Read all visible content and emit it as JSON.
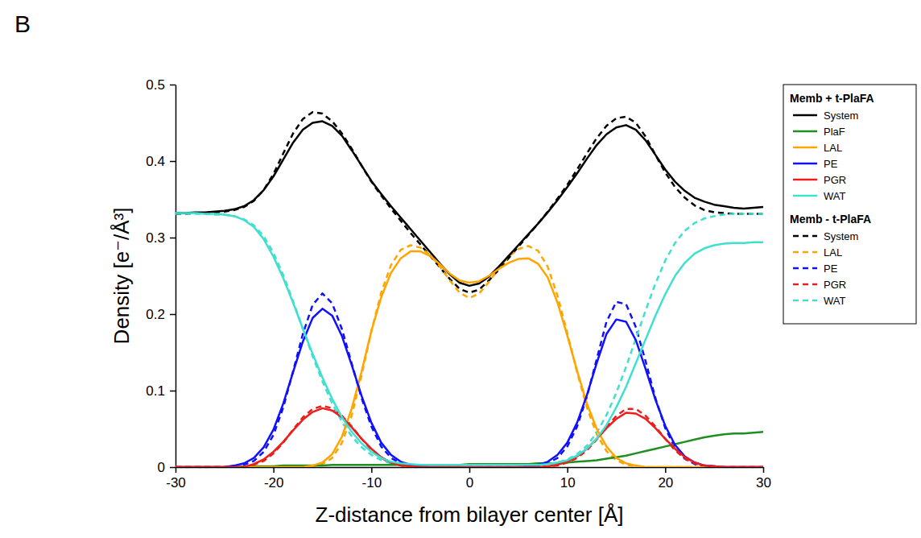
{
  "chart_data": {
    "type": "line",
    "panel_label": "B",
    "x_label": "Z-distance from bilayer center [Å]",
    "y_label": "Density [e⁻/Å³]",
    "xlim": [
      -30,
      30
    ],
    "xticks": [
      -30,
      -20,
      -10,
      0,
      10,
      20,
      30
    ],
    "ylim": [
      0,
      0.5
    ],
    "yticks": [
      0,
      0.1,
      0.2,
      0.3,
      0.4,
      0.5
    ],
    "legend": "right",
    "x": [
      -30,
      -29,
      -28,
      -27,
      -26,
      -25,
      -24,
      -23,
      -22,
      -21,
      -20,
      -19,
      -18,
      -17,
      -16,
      -15,
      -14,
      -13,
      -12,
      -11,
      -10,
      -9,
      -8,
      -7,
      -6,
      -5,
      -4,
      -3,
      -2,
      -1,
      0,
      1,
      2,
      3,
      4,
      5,
      6,
      7,
      8,
      9,
      10,
      11,
      12,
      13,
      14,
      15,
      16,
      17,
      18,
      19,
      20,
      21,
      22,
      23,
      24,
      25,
      26,
      27,
      28,
      29,
      30
    ],
    "groups": [
      {
        "name": "Memb + t-PlaFA",
        "line_style": "solid",
        "series": [
          {
            "name": "System",
            "color": "#000000",
            "values": [
              0.332,
              0.332,
              0.333,
              0.333,
              0.334,
              0.335,
              0.337,
              0.341,
              0.349,
              0.362,
              0.38,
              0.402,
              0.424,
              0.441,
              0.45,
              0.452,
              0.446,
              0.433,
              0.414,
              0.394,
              0.374,
              0.357,
              0.341,
              0.326,
              0.311,
              0.296,
              0.281,
              0.266,
              0.252,
              0.241,
              0.237,
              0.24,
              0.249,
              0.262,
              0.276,
              0.29,
              0.304,
              0.318,
              0.333,
              0.349,
              0.366,
              0.384,
              0.403,
              0.421,
              0.435,
              0.444,
              0.447,
              0.441,
              0.427,
              0.408,
              0.389,
              0.373,
              0.361,
              0.352,
              0.347,
              0.343,
              0.341,
              0.339,
              0.338,
              0.339,
              0.34
            ]
          },
          {
            "name": "PlaF",
            "color": "#1f8f1f",
            "values": [
              0,
              0,
              0,
              0,
              0,
              0,
              0.001,
              0.001,
              0.001,
              0.001,
              0.001,
              0.002,
              0.002,
              0.002,
              0.002,
              0.002,
              0.003,
              0.003,
              0.003,
              0.003,
              0.003,
              0.003,
              0.003,
              0.003,
              0.003,
              0.003,
              0.003,
              0.003,
              0.003,
              0.003,
              0.004,
              0.004,
              0.004,
              0.004,
              0.004,
              0.004,
              0.004,
              0.005,
              0.005,
              0.005,
              0.006,
              0.007,
              0.008,
              0.009,
              0.011,
              0.013,
              0.015,
              0.018,
              0.021,
              0.024,
              0.027,
              0.03,
              0.033,
              0.036,
              0.039,
              0.041,
              0.043,
              0.044,
              0.044,
              0.045,
              0.046
            ]
          },
          {
            "name": "LAL",
            "color": "#ffa500",
            "values": [
              0,
              0,
              0,
              0,
              0,
              0,
              0,
              0,
              0,
              0,
              0,
              0,
              0,
              0,
              0.002,
              0.006,
              0.017,
              0.04,
              0.077,
              0.125,
              0.178,
              0.222,
              0.254,
              0.273,
              0.282,
              0.282,
              0.276,
              0.265,
              0.253,
              0.244,
              0.241,
              0.243,
              0.25,
              0.259,
              0.267,
              0.272,
              0.273,
              0.266,
              0.248,
              0.215,
              0.172,
              0.126,
              0.083,
              0.05,
              0.027,
              0.012,
              0.005,
              0.002,
              0,
              0,
              0,
              0,
              0,
              0,
              0,
              0,
              0,
              0,
              0,
              0,
              0
            ]
          },
          {
            "name": "PE",
            "color": "#1010ff",
            "values": [
              0,
              0,
              0,
              0,
              0,
              0,
              0.002,
              0.005,
              0.012,
              0.026,
              0.049,
              0.083,
              0.124,
              0.164,
              0.195,
              0.207,
              0.198,
              0.171,
              0.133,
              0.093,
              0.058,
              0.032,
              0.016,
              0.007,
              0.003,
              0.001,
              0,
              0,
              0,
              0,
              0,
              0,
              0,
              0,
              0,
              0,
              0.001,
              0.003,
              0.007,
              0.016,
              0.032,
              0.058,
              0.094,
              0.136,
              0.174,
              0.193,
              0.19,
              0.166,
              0.128,
              0.088,
              0.054,
              0.029,
              0.014,
              0.006,
              0.002,
              0.001,
              0,
              0,
              0,
              0,
              0
            ]
          },
          {
            "name": "PGR",
            "color": "#ee1c1c",
            "values": [
              0,
              0,
              0,
              0,
              0,
              0,
              0,
              0,
              0.004,
              0.01,
              0.02,
              0.033,
              0.048,
              0.062,
              0.072,
              0.077,
              0.074,
              0.065,
              0.052,
              0.037,
              0.024,
              0.013,
              0.006,
              0.002,
              0.001,
              0,
              0,
              0,
              0,
              0,
              0,
              0,
              0,
              0,
              0,
              0,
              0,
              0,
              0.001,
              0.003,
              0.007,
              0.014,
              0.024,
              0.037,
              0.051,
              0.063,
              0.071,
              0.07,
              0.063,
              0.051,
              0.037,
              0.024,
              0.013,
              0.006,
              0.002,
              0.001,
              0,
              0,
              0,
              0,
              0
            ]
          },
          {
            "name": "WAT",
            "color": "#40e0d0",
            "values": [
              0.332,
              0.332,
              0.332,
              0.331,
              0.331,
              0.33,
              0.328,
              0.323,
              0.314,
              0.298,
              0.275,
              0.247,
              0.215,
              0.181,
              0.148,
              0.117,
              0.089,
              0.065,
              0.046,
              0.031,
              0.02,
              0.012,
              0.007,
              0.005,
              0.004,
              0.003,
              0.003,
              0.003,
              0.003,
              0.003,
              0.003,
              0.003,
              0.003,
              0.003,
              0.003,
              0.003,
              0.003,
              0.003,
              0.004,
              0.006,
              0.009,
              0.015,
              0.024,
              0.037,
              0.055,
              0.078,
              0.105,
              0.136,
              0.167,
              0.198,
              0.226,
              0.25,
              0.267,
              0.279,
              0.286,
              0.29,
              0.292,
              0.293,
              0.293,
              0.294,
              0.294
            ]
          }
        ]
      },
      {
        "name": "Memb - t-PlaFA",
        "line_style": "dashed",
        "series": [
          {
            "name": "System",
            "color": "#000000",
            "values": [
              0.331,
              0.331,
              0.332,
              0.332,
              0.333,
              0.334,
              0.336,
              0.34,
              0.348,
              0.362,
              0.383,
              0.41,
              0.436,
              0.455,
              0.464,
              0.462,
              0.452,
              0.436,
              0.416,
              0.394,
              0.373,
              0.355,
              0.338,
              0.322,
              0.306,
              0.291,
              0.276,
              0.261,
              0.246,
              0.233,
              0.228,
              0.232,
              0.244,
              0.258,
              0.273,
              0.288,
              0.303,
              0.318,
              0.334,
              0.351,
              0.369,
              0.389,
              0.41,
              0.43,
              0.446,
              0.456,
              0.458,
              0.45,
              0.432,
              0.408,
              0.385,
              0.366,
              0.352,
              0.342,
              0.336,
              0.333,
              0.332,
              0.331,
              0.331,
              0.331,
              0.331
            ]
          },
          {
            "name": "LAL",
            "color": "#ffa500",
            "values": [
              0,
              0,
              0,
              0,
              0,
              0,
              0,
              0,
              0,
              0,
              0,
              0,
              0,
              0,
              0.001,
              0.004,
              0.012,
              0.032,
              0.068,
              0.12,
              0.178,
              0.228,
              0.264,
              0.284,
              0.29,
              0.287,
              0.277,
              0.262,
              0.244,
              0.228,
              0.221,
              0.227,
              0.242,
              0.26,
              0.275,
              0.285,
              0.289,
              0.283,
              0.262,
              0.224,
              0.175,
              0.124,
              0.078,
              0.043,
              0.021,
              0.009,
              0.003,
              0.001,
              0,
              0,
              0,
              0,
              0,
              0,
              0,
              0,
              0,
              0,
              0,
              0,
              0
            ]
          },
          {
            "name": "PE",
            "color": "#1010ff",
            "values": [
              0,
              0,
              0,
              0,
              0,
              0,
              0.001,
              0.003,
              0.008,
              0.02,
              0.042,
              0.078,
              0.125,
              0.174,
              0.212,
              0.227,
              0.214,
              0.18,
              0.135,
              0.09,
              0.053,
              0.027,
              0.012,
              0.005,
              0.002,
              0.001,
              0,
              0,
              0,
              0,
              0,
              0,
              0,
              0,
              0,
              0,
              0.001,
              0.002,
              0.005,
              0.012,
              0.027,
              0.053,
              0.092,
              0.141,
              0.19,
              0.216,
              0.213,
              0.183,
              0.138,
              0.09,
              0.051,
              0.025,
              0.011,
              0.004,
              0.001,
              0,
              0,
              0,
              0,
              0,
              0
            ]
          },
          {
            "name": "PGR",
            "color": "#ee1c1c",
            "values": [
              0,
              0,
              0,
              0,
              0,
              0,
              0,
              0,
              0.003,
              0.008,
              0.018,
              0.032,
              0.049,
              0.065,
              0.076,
              0.08,
              0.077,
              0.067,
              0.053,
              0.037,
              0.023,
              0.012,
              0.005,
              0.002,
              0.001,
              0,
              0,
              0,
              0,
              0,
              0,
              0,
              0,
              0,
              0,
              0,
              0,
              0,
              0.001,
              0.002,
              0.006,
              0.012,
              0.022,
              0.036,
              0.052,
              0.067,
              0.076,
              0.076,
              0.067,
              0.053,
              0.037,
              0.022,
              0.011,
              0.005,
              0.002,
              0.001,
              0,
              0,
              0,
              0,
              0
            ]
          },
          {
            "name": "WAT",
            "color": "#40e0d0",
            "values": [
              0.331,
              0.331,
              0.331,
              0.331,
              0.33,
              0.33,
              0.328,
              0.324,
              0.316,
              0.302,
              0.28,
              0.251,
              0.217,
              0.181,
              0.145,
              0.112,
              0.083,
              0.059,
              0.04,
              0.026,
              0.016,
              0.009,
              0.005,
              0.004,
              0.003,
              0.003,
              0.003,
              0.003,
              0.003,
              0.003,
              0.003,
              0.003,
              0.003,
              0.003,
              0.003,
              0.003,
              0.003,
              0.003,
              0.004,
              0.006,
              0.01,
              0.017,
              0.028,
              0.045,
              0.068,
              0.097,
              0.131,
              0.168,
              0.205,
              0.24,
              0.27,
              0.293,
              0.309,
              0.319,
              0.325,
              0.328,
              0.33,
              0.331,
              0.331,
              0.331,
              0.331
            ]
          }
        ]
      }
    ]
  }
}
